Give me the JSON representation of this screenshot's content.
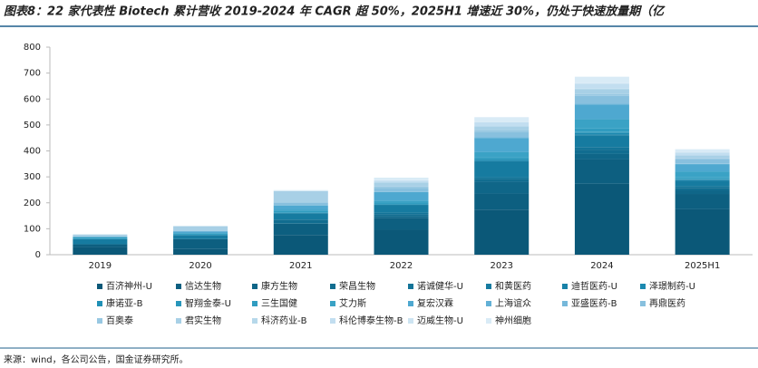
{
  "chart_data": {
    "type": "stacked_bar",
    "title": "图表8：22 家代表性 Biotech 累计营收 2019-2024 年 CAGR 超 50%，2025H1 增速近 30%，仍处于快速放量期（亿",
    "source": "来源：wind，各公司公告，国金证券研究所。",
    "categories": [
      "2019",
      "2020",
      "2021",
      "2022",
      "2023",
      "2024",
      "2025H1"
    ],
    "ylim": [
      0,
      800
    ],
    "yticks": [
      0,
      100,
      200,
      300,
      400,
      500,
      600,
      700,
      800
    ],
    "series": [
      {
        "name": "百济神州-U",
        "color": "#0b5878",
        "values": [
          30,
          22,
          76,
          96,
          174,
          273,
          175
        ]
      },
      {
        "name": "信达生物",
        "color": "#0d5f80",
        "values": [
          10,
          38,
          43,
          45,
          62,
          94,
          59
        ]
      },
      {
        "name": "康方生物",
        "color": "#0f6688",
        "values": [
          0,
          0,
          2,
          8,
          45,
          21,
          14
        ]
      },
      {
        "name": "荣昌生物",
        "color": "#116d90",
        "values": [
          0,
          0,
          14,
          7,
          11,
          17,
          10
        ]
      },
      {
        "name": "诺诚健华-U",
        "color": "#137498",
        "values": [
          0,
          0,
          1,
          6,
          7,
          10,
          7
        ]
      },
      {
        "name": "和黄医药",
        "color": "#167ba0",
        "values": [
          20,
          16,
          24,
          30,
          61,
          45,
          20
        ]
      },
      {
        "name": "迪哲医药-U",
        "color": "#1982a8",
        "values": [
          0,
          0,
          0,
          0,
          1,
          4,
          2
        ]
      },
      {
        "name": "泽璟制药-U",
        "color": "#1c89b0",
        "values": [
          0,
          0,
          1,
          2,
          4,
          5,
          3
        ]
      },
      {
        "name": "康诺亚-B",
        "color": "#2090b6",
        "values": [
          0,
          0,
          1,
          1,
          4,
          4,
          1
        ]
      },
      {
        "name": "智翔金泰-U",
        "color": "#2896bb",
        "values": [
          0,
          0,
          0,
          0,
          0,
          1,
          1
        ]
      },
      {
        "name": "三生国健",
        "color": "#309cc0",
        "values": [
          8,
          7,
          6,
          6,
          7,
          12,
          6
        ]
      },
      {
        "name": "艾力斯",
        "color": "#3aa2c5",
        "values": [
          0,
          0,
          5,
          8,
          20,
          36,
          23
        ]
      },
      {
        "name": "复宏汉霖",
        "color": "#4ea8d0",
        "values": [
          1,
          6,
          17,
          32,
          54,
          57,
          28
        ]
      },
      {
        "name": "上海谊众",
        "color": "#62b0d6",
        "values": [
          0,
          0,
          1,
          1,
          2,
          3,
          1
        ]
      },
      {
        "name": "亚盛医药-B",
        "color": "#76b8da",
        "values": [
          0,
          0,
          0,
          2,
          2,
          1,
          2
        ]
      },
      {
        "name": "再鼎医药",
        "color": "#88c0de",
        "values": [
          1,
          3,
          9,
          14,
          19,
          29,
          15
        ]
      },
      {
        "name": "百奥泰",
        "color": "#98c8e2",
        "values": [
          0,
          2,
          5,
          5,
          7,
          7,
          4
        ]
      },
      {
        "name": "君实生物",
        "color": "#a8d0e6",
        "values": [
          8,
          16,
          40,
          15,
          15,
          19,
          12
        ]
      },
      {
        "name": "科济药业-B",
        "color": "#b6d8ea",
        "values": [
          0,
          0,
          0,
          0,
          0,
          2,
          0.5
        ]
      },
      {
        "name": "科伦博泰生物-B",
        "color": "#c2def0",
        "values": [
          0,
          0,
          0,
          8,
          15,
          19,
          10
        ]
      },
      {
        "name": "迈威生物-U",
        "color": "#cde4f2",
        "values": [
          0,
          0,
          0,
          1,
          1,
          2,
          1
        ]
      },
      {
        "name": "神州细胞",
        "color": "#d9ebf6",
        "values": [
          0,
          0,
          4,
          10,
          19,
          25,
          12
        ]
      }
    ]
  }
}
